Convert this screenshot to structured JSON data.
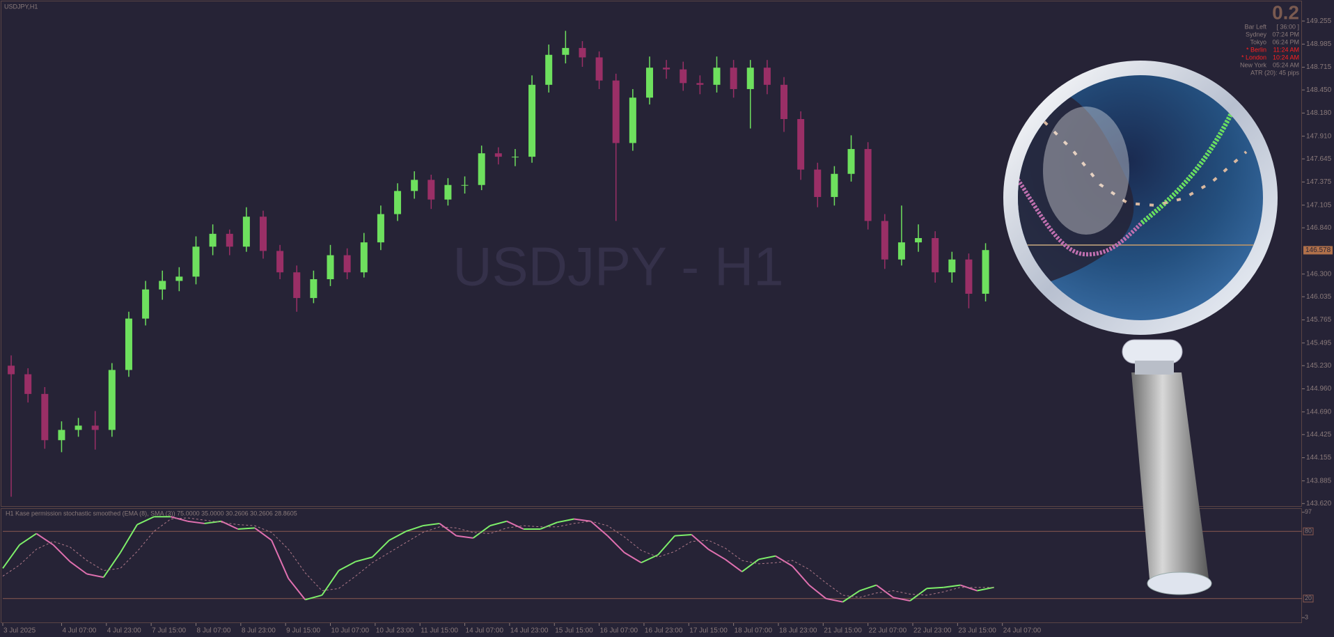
{
  "chart_data": [
    {
      "type": "candlestick",
      "title": "USDJPY,H1",
      "watermark": "USDJPY - H1",
      "up_color": "#6ee05e",
      "down_color": "#9a2f66",
      "x": [
        3,
        9,
        15,
        21,
        27,
        33,
        39,
        45,
        51,
        57,
        63,
        69,
        75,
        81,
        87,
        93,
        99,
        105,
        111,
        117,
        123,
        129,
        135,
        141,
        147,
        153,
        159,
        165,
        171,
        177,
        183,
        189,
        195,
        201,
        207,
        213,
        219,
        225,
        231,
        237,
        243,
        249,
        255,
        261,
        267,
        273,
        279,
        285,
        291,
        297,
        303,
        309,
        315,
        321,
        327,
        333,
        339,
        345,
        351
      ],
      "open": [
        145.23,
        145.13,
        144.9,
        144.36,
        144.48,
        144.53,
        144.48,
        145.18,
        145.78,
        146.12,
        146.22,
        146.27,
        146.62,
        146.77,
        146.62,
        146.97,
        146.57,
        146.32,
        146.02,
        146.24,
        146.52,
        146.32,
        146.67,
        147.0,
        147.27,
        147.4,
        147.17,
        147.34,
        147.34,
        147.71,
        147.67,
        147.67,
        148.51,
        148.86,
        148.94,
        148.83,
        148.56,
        147.83,
        148.36,
        148.71,
        148.69,
        148.53,
        148.51,
        148.71,
        148.46,
        148.71,
        148.51,
        148.11,
        147.52,
        147.2,
        147.47,
        147.76,
        146.92,
        146.47,
        146.67,
        146.72,
        146.32,
        146.47,
        146.07
      ],
      "high": [
        145.35,
        145.2,
        144.98,
        144.58,
        144.62,
        144.7,
        145.26,
        145.86,
        146.22,
        146.34,
        146.38,
        146.74,
        146.88,
        146.82,
        147.08,
        147.04,
        146.64,
        146.4,
        146.34,
        146.64,
        146.6,
        146.78,
        147.1,
        147.36,
        147.5,
        147.46,
        147.42,
        147.44,
        147.8,
        147.78,
        147.76,
        148.62,
        148.98,
        149.14,
        149.02,
        148.9,
        148.64,
        148.46,
        148.84,
        148.8,
        148.78,
        148.62,
        148.84,
        148.8,
        148.8,
        148.8,
        148.6,
        148.2,
        147.6,
        147.56,
        147.92,
        147.84,
        147.0,
        147.1,
        146.88,
        146.8,
        146.56,
        146.54,
        146.66
      ],
      "low": [
        143.7,
        144.8,
        144.26,
        144.22,
        144.4,
        144.25,
        144.4,
        145.1,
        145.7,
        146.0,
        146.1,
        146.18,
        146.52,
        146.52,
        146.56,
        146.48,
        146.24,
        145.86,
        145.96,
        146.16,
        146.24,
        146.26,
        146.58,
        146.92,
        147.18,
        147.06,
        147.1,
        147.24,
        147.28,
        147.58,
        147.56,
        147.6,
        148.42,
        148.76,
        148.72,
        148.46,
        146.92,
        147.74,
        148.28,
        148.58,
        148.44,
        148.4,
        148.42,
        148.36,
        148.0,
        148.4,
        147.96,
        147.4,
        147.08,
        147.1,
        147.38,
        146.82,
        146.36,
        146.4,
        146.56,
        146.2,
        146.2,
        145.9,
        145.98
      ],
      "close": [
        145.13,
        144.9,
        144.36,
        144.48,
        144.53,
        144.48,
        145.18,
        145.78,
        146.12,
        146.22,
        146.27,
        146.62,
        146.77,
        146.62,
        146.97,
        146.57,
        146.32,
        146.02,
        146.24,
        146.52,
        146.32,
        146.67,
        147.0,
        147.27,
        147.4,
        147.17,
        147.34,
        147.34,
        147.71,
        147.67,
        147.67,
        148.51,
        148.86,
        148.94,
        148.83,
        148.56,
        147.83,
        148.36,
        148.71,
        148.69,
        148.53,
        148.51,
        148.71,
        148.46,
        148.71,
        148.51,
        148.11,
        147.52,
        147.2,
        147.47,
        147.76,
        146.92,
        146.47,
        146.67,
        146.72,
        146.32,
        146.47,
        146.07,
        146.58
      ],
      "last_price": 146.578,
      "xlim": [
        0,
        464
      ],
      "xticks": [
        {
          "value": 0,
          "label": "3 Jul 2025"
        },
        {
          "value": 21,
          "label": "4 Jul 07:00"
        },
        {
          "value": 37,
          "label": "4 Jul 23:00"
        },
        {
          "value": 53,
          "label": "7 Jul 15:00"
        },
        {
          "value": 69,
          "label": "8 Jul 07:00"
        },
        {
          "value": 85,
          "label": "8 Jul 23:00"
        },
        {
          "value": 101,
          "label": "9 Jul 15:00"
        },
        {
          "value": 117,
          "label": "10 Jul 07:00"
        },
        {
          "value": 133,
          "label": "10 Jul 23:00"
        },
        {
          "value": 149,
          "label": "11 Jul 15:00"
        },
        {
          "value": 165,
          "label": "14 Jul 07:00"
        },
        {
          "value": 181,
          "label": "14 Jul 23:00"
        },
        {
          "value": 197,
          "label": "15 Jul 15:00"
        },
        {
          "value": 213,
          "label": "16 Jul 07:00"
        },
        {
          "value": 229,
          "label": "16 Jul 23:00"
        },
        {
          "value": 245,
          "label": "17 Jul 15:00"
        },
        {
          "value": 261,
          "label": "18 Jul 07:00"
        },
        {
          "value": 277,
          "label": "18 Jul 23:00"
        },
        {
          "value": 293,
          "label": "21 Jul 15:00"
        },
        {
          "value": 309,
          "label": "22 Jul 07:00"
        },
        {
          "value": 325,
          "label": "22 Jul 23:00"
        },
        {
          "value": 341,
          "label": "23 Jul 15:00"
        },
        {
          "value": 357,
          "label": "24 Jul 07:00"
        }
      ],
      "ylim": [
        143.59,
        149.484
      ],
      "yticks": [
        149.255,
        148.985,
        148.715,
        {
          "value": 148.45,
          "label": "148.450"
        },
        {
          "value": 148.18,
          "label": "148.180"
        },
        {
          "value": 147.91,
          "label": "147.910"
        },
        147.645,
        147.375,
        147.105,
        {
          "value": 146.84,
          "label": "146.840"
        },
        {
          "value": 146.3,
          "label": "146.300"
        },
        146.035,
        145.765,
        145.495,
        {
          "value": 145.23,
          "label": "145.230"
        },
        {
          "value": 144.96,
          "label": "144.960"
        },
        {
          "value": 144.69,
          "label": "144.690"
        },
        144.425,
        144.155,
        143.885,
        {
          "value": 143.62,
          "label": "143.620"
        }
      ],
      "info_panel": {
        "spread": 0.2,
        "rows": [
          {
            "label": "Bar Left",
            "value": "[ 36:00 ]",
            "color": "#8a7a7a"
          },
          {
            "label": "Sydney",
            "value": "07:24 PM",
            "color": "#8a7a7a"
          },
          {
            "label": "Tokyo",
            "value": "06:24 PM",
            "color": "#8a7a7a"
          },
          {
            "label": "* Berlin",
            "value": "11:24 AM",
            "color": "#ff2020"
          },
          {
            "label": "* London",
            "value": "10:24 AM",
            "color": "#ff2020"
          },
          {
            "label": "New York",
            "value": "05:24 AM",
            "color": "#8a7a7a"
          }
        ],
        "atr": "ATR (20): 45 pips"
      }
    },
    {
      "type": "line",
      "title": "H1 Kase permission stochastic smoothed (EMA (8), SMA (3)) 75.0000 35.0000 30.2606 30.2606 28.8605",
      "x": [
        0,
        6,
        12,
        18,
        24,
        30,
        36,
        42,
        48,
        54,
        60,
        66,
        72,
        78,
        84,
        90,
        96,
        102,
        108,
        114,
        120,
        126,
        132,
        138,
        144,
        150,
        156,
        162,
        168,
        174,
        180,
        186,
        192,
        198,
        204,
        210,
        216,
        222,
        228,
        234,
        240,
        246,
        252,
        258,
        264,
        270,
        276,
        282,
        288,
        294,
        300,
        306,
        312,
        318,
        324,
        330,
        336,
        342,
        348,
        354
      ],
      "series": [
        {
          "up_color": "#7ef06a",
          "down_color": "#e070b0",
          "values": [
            47,
            68,
            78,
            68,
            53,
            42,
            39,
            61,
            86,
            93,
            93,
            89,
            87,
            89,
            82,
            83,
            72,
            38,
            19,
            23,
            45,
            53,
            57,
            72,
            80,
            85,
            87,
            76,
            74,
            85,
            89,
            82,
            82,
            88,
            91,
            89,
            76,
            61,
            52,
            59,
            76,
            77,
            64,
            55,
            44,
            55,
            58,
            49,
            32,
            20,
            17,
            27,
            32,
            21,
            18,
            29,
            30,
            32,
            27,
            30
          ]
        },
        {
          "color": "#b07a8a",
          "dashed": true,
          "values": [
            40,
            50,
            64,
            71,
            66,
            54,
            45,
            47,
            62,
            80,
            91,
            92,
            90,
            88,
            86,
            85,
            79,
            64,
            43,
            27,
            29,
            40,
            52,
            61,
            70,
            79,
            84,
            83,
            79,
            78,
            83,
            85,
            84,
            84,
            87,
            89,
            85,
            75,
            63,
            57,
            62,
            71,
            72,
            65,
            54,
            51,
            52,
            54,
            46,
            34,
            23,
            21,
            25,
            27,
            24,
            23,
            26,
            30,
            30,
            30
          ]
        }
      ],
      "xlim": [
        0,
        464
      ],
      "ylim": [
        0,
        100
      ],
      "yticks": [
        97,
        80,
        20,
        3
      ],
      "levels": [
        80,
        20
      ],
      "level_color": "#8a5a50"
    }
  ]
}
